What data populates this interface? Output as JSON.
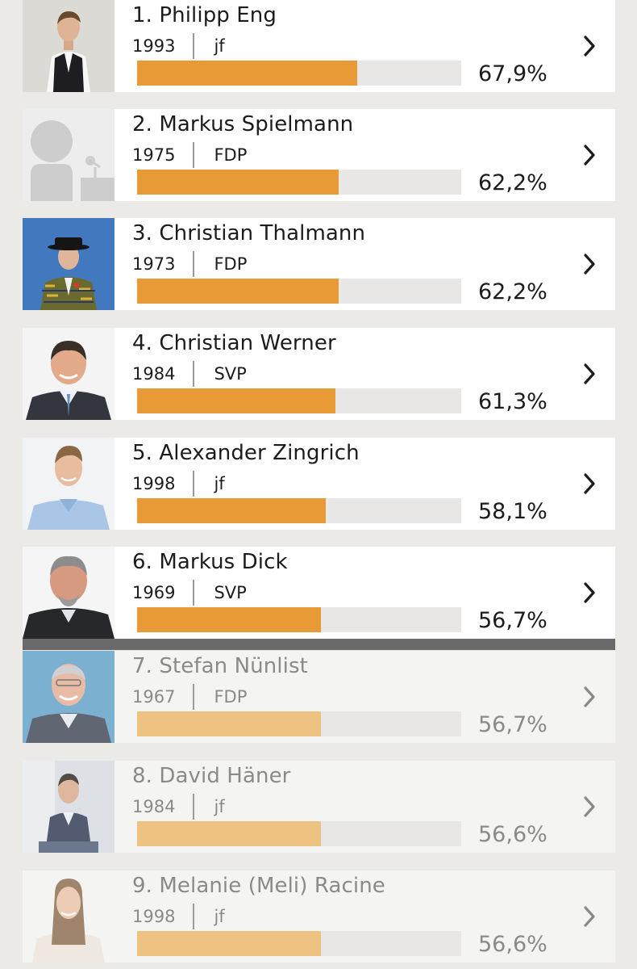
{
  "candidates": [
    {
      "rank_name": "1. Philipp Eng",
      "year": "1993",
      "party": "jf",
      "percent_label": "67,9%",
      "percent": 67.9
    },
    {
      "rank_name": "2. Markus Spielmann",
      "year": "1975",
      "party": "FDP",
      "percent_label": "62,2%",
      "percent": 62.2
    },
    {
      "rank_name": "3. Christian Thalmann",
      "year": "1973",
      "party": "FDP",
      "percent_label": "62,2%",
      "percent": 62.2
    },
    {
      "rank_name": "4. Christian Werner",
      "year": "1984",
      "party": "SVP",
      "percent_label": "61,3%",
      "percent": 61.3
    },
    {
      "rank_name": "5. Alexander Zingrich",
      "year": "1998",
      "party": "jf",
      "percent_label": "58,1%",
      "percent": 58.1
    },
    {
      "rank_name": "6. Markus Dick",
      "year": "1969",
      "party": "SVP",
      "percent_label": "56,7%",
      "percent": 56.7
    },
    {
      "rank_name": "7. Stefan Nünlist",
      "year": "1967",
      "party": "FDP",
      "percent_label": "56,7%",
      "percent": 56.7
    },
    {
      "rank_name": "8. David Häner",
      "year": "1984",
      "party": "jf",
      "percent_label": "56,6%",
      "percent": 56.6
    },
    {
      "rank_name": "9. Melanie (Meli) Racine",
      "year": "1998",
      "party": "jf",
      "percent_label": "56,6%",
      "percent": 56.6
    }
  ],
  "bar_scale_max": 100,
  "colors": {
    "elected_bar": "#e79a35",
    "not_elected_bar": "#eec281",
    "divider": "#6a6a6a"
  },
  "icons": {
    "chevron": "chevron-right-icon",
    "placeholder_photo": "person-placeholder-icon"
  }
}
